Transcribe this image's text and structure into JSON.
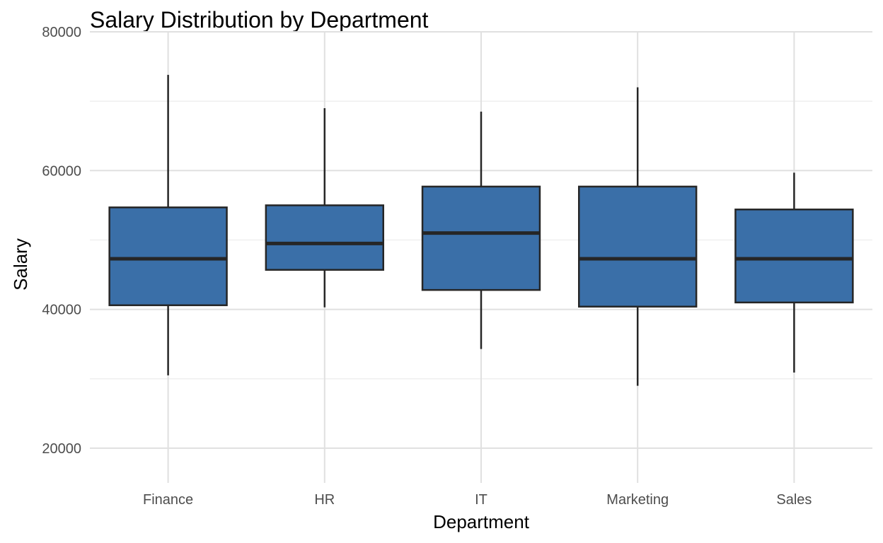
{
  "colors": {
    "box_fill": "#3a6fa8",
    "box_stroke": "#262626",
    "grid": "#e0e0e0",
    "background": "#ffffff"
  },
  "chart_data": {
    "type": "boxplot",
    "title": "Salary Distribution by Department",
    "xlabel": "Department",
    "ylabel": "Salary",
    "categories": [
      "Finance",
      "HR",
      "IT",
      "Marketing",
      "Sales"
    ],
    "ylim": [
      15000,
      80000
    ],
    "y_ticks": [
      20000,
      40000,
      60000,
      80000
    ],
    "y_tick_labels": [
      "20000",
      "40000",
      "60000",
      "80000"
    ],
    "grid": true,
    "legend": "none",
    "series": [
      {
        "boxes": [
          {
            "category": "Finance",
            "whisker_low": 30500,
            "q1": 40600,
            "median": 47300,
            "q3": 54700,
            "whisker_high": 73800
          },
          {
            "category": "HR",
            "whisker_low": 40300,
            "q1": 45700,
            "median": 49500,
            "q3": 55000,
            "whisker_high": 69000
          },
          {
            "category": "IT",
            "whisker_low": 34300,
            "q1": 42800,
            "median": 51000,
            "q3": 57700,
            "whisker_high": 68500
          },
          {
            "category": "Marketing",
            "whisker_low": 29000,
            "q1": 40400,
            "median": 47300,
            "q3": 57700,
            "whisker_high": 72000
          },
          {
            "category": "Sales",
            "whisker_low": 30900,
            "q1": 41000,
            "median": 47300,
            "q3": 54400,
            "whisker_high": 59700
          }
        ]
      }
    ]
  }
}
